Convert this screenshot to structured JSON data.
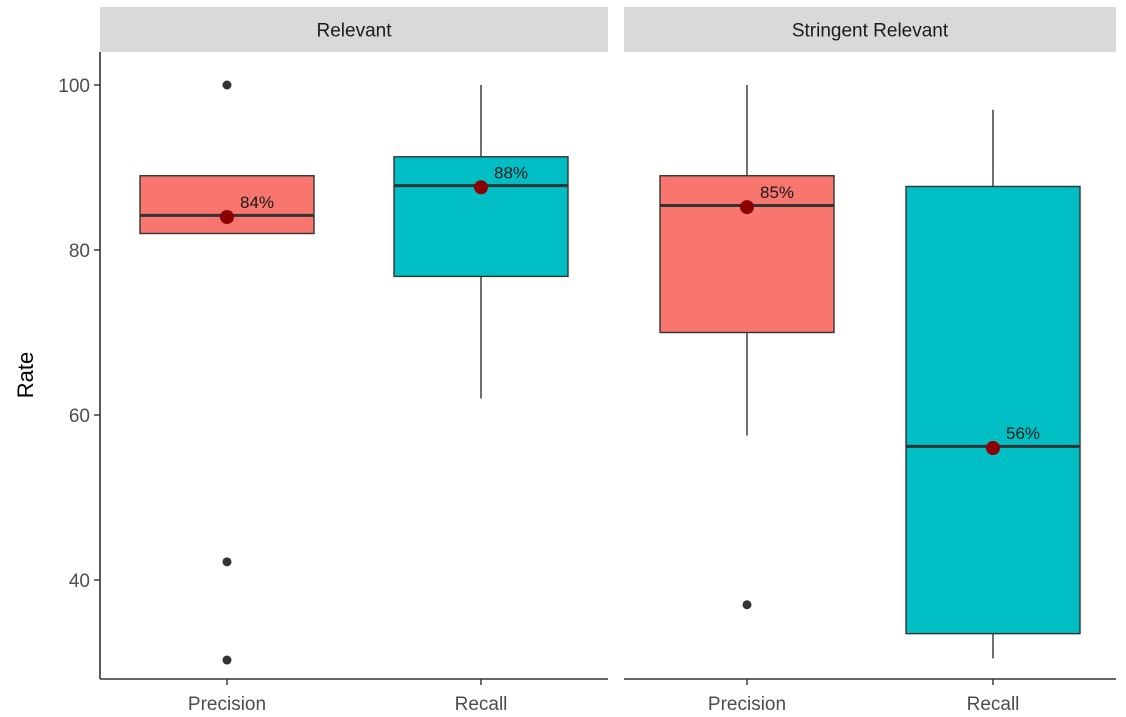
{
  "chart_data": {
    "type": "boxplot",
    "ylabel": "Rate",
    "xlabel": "",
    "ylim": [
      28,
      104
    ],
    "y_ticks": [
      40,
      60,
      80,
      100
    ],
    "categories": [
      "Precision",
      "Recall"
    ],
    "colors": {
      "Precision": "#F8766D",
      "Recall": "#00BFC4",
      "mean_marker": "#8B0000"
    },
    "panels": [
      {
        "title": "Relevant",
        "boxes": [
          {
            "category": "Precision",
            "lower_whisker": 82,
            "q1": 82,
            "median": 84.2,
            "q3": 89,
            "upper_whisker": 89,
            "outliers": [
              100,
              42.2,
              30.3
            ],
            "mean": 84,
            "mean_label": "84%"
          },
          {
            "category": "Recall",
            "lower_whisker": 62,
            "q1": 76.8,
            "median": 87.8,
            "q3": 91.3,
            "upper_whisker": 100,
            "outliers": [],
            "mean": 87.6,
            "mean_label": "88%"
          }
        ]
      },
      {
        "title": "Stringent Relevant",
        "boxes": [
          {
            "category": "Precision",
            "lower_whisker": 57.5,
            "q1": 70,
            "median": 85.4,
            "q3": 89,
            "upper_whisker": 100,
            "outliers": [
              37
            ],
            "mean": 85.2,
            "mean_label": "85%"
          },
          {
            "category": "Recall",
            "lower_whisker": 30.5,
            "q1": 33.5,
            "median": 56.2,
            "q3": 87.7,
            "upper_whisker": 97,
            "outliers": [],
            "mean": 56,
            "mean_label": "56%"
          }
        ]
      }
    ]
  }
}
